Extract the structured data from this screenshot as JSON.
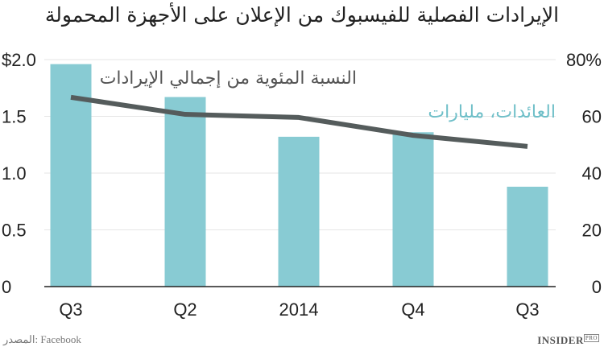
{
  "title": "الإيرادات الفصلية للفيسبوك من الإعلان على الأجهزة المحمولة",
  "source": "المصدر: Facebook",
  "logo": {
    "main": "INSIDER",
    "sup": "PRO"
  },
  "colors": {
    "bar": "#88cbd3",
    "line": "#555c5c",
    "grid": "#e6e6e6"
  },
  "chart_data": {
    "type": "bar+line",
    "categories": [
      "Q3",
      "Q2",
      "2014",
      "Q4",
      "Q3"
    ],
    "series": [
      {
        "name": "العائدات، مليارات",
        "type": "bar",
        "axis": "left",
        "values": [
          1.96,
          1.67,
          1.32,
          1.36,
          0.88
        ]
      },
      {
        "name": "النسبة المئوية من إجمالي الإيرادات",
        "type": "line",
        "axis": "right",
        "values": [
          66.7,
          60.7,
          59.6,
          53.3,
          49.4
        ]
      }
    ],
    "left_axis": {
      "range": [
        0,
        2.0
      ],
      "ticks": [
        "0",
        "0.5",
        "1.0",
        "1.5",
        "$2.0"
      ],
      "tick_values": [
        0,
        0.5,
        1.0,
        1.5,
        2.0
      ]
    },
    "right_axis": {
      "range": [
        0,
        80
      ],
      "ticks": [
        "0",
        "20",
        "40",
        "60",
        "80%"
      ],
      "tick_values": [
        0,
        20,
        40,
        60,
        80
      ]
    },
    "grid": true
  }
}
